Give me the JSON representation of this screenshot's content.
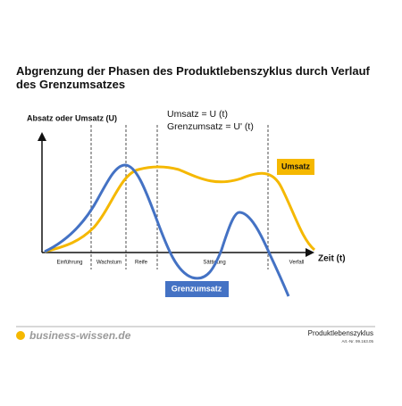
{
  "header": {
    "title": "Abgrenzung der Phasen des Produktlebenszyklus durch Verlauf des Grenzumsatzes"
  },
  "diagram": {
    "y_axis_label": "Absatz oder Umsatz (U)",
    "x_axis_label": "Zeit (t)",
    "formulas": [
      "Umsatz = U (t)",
      "Grenzumsatz = U' (t)"
    ],
    "phases": [
      "Einführung",
      "Wachstum",
      "Reife",
      "Sättigung",
      "Verfall"
    ],
    "curve_labels": {
      "umsatz": "Umsatz",
      "grenzumsatz": "Grenzumsatz"
    }
  },
  "footer": {
    "brand": "business-wissen.de",
    "topic": "Produktlebenszyklus",
    "article": "Art.-Nr. 99.163.05"
  }
}
